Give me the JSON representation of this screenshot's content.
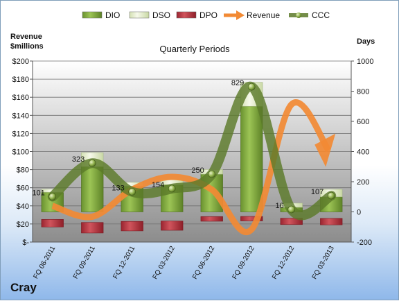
{
  "chart_data": {
    "type": "bar",
    "title": "Quarterly Periods",
    "company": "Cray",
    "left_axis": {
      "label_line1": "Revenue",
      "label_line2": "$millions",
      "ticks": [
        "$-",
        "$20",
        "$40",
        "$60",
        "$80",
        "$100",
        "$120",
        "$140",
        "$160",
        "$180",
        "$200"
      ],
      "ylim": [
        0,
        200
      ]
    },
    "right_axis": {
      "label": "Days",
      "ticks": [
        "-200",
        "0",
        "200",
        "400",
        "600",
        "800",
        "1000"
      ],
      "ylim": [
        -200,
        1000
      ]
    },
    "categories": [
      "FQ 06-2011",
      "FQ 09-2011",
      "FQ 12-2011",
      "FQ 03-2012",
      "FQ 06-2012",
      "FQ 09-2012",
      "FQ 12-2012",
      "FQ 03-2013"
    ],
    "legend": {
      "position": "top",
      "items": [
        {
          "name": "DIO",
          "type": "bar",
          "color": "#7ea83a"
        },
        {
          "name": "DSO",
          "type": "bar",
          "color": "#e6efcf"
        },
        {
          "name": "DPO",
          "type": "bar",
          "color": "#b8333d"
        },
        {
          "name": "Revenue",
          "type": "arrow",
          "color": "#f28a34"
        },
        {
          "name": "CCC",
          "type": "line",
          "color": "#5c7a2a"
        }
      ]
    },
    "series": [
      {
        "name": "DIO",
        "axis": "right",
        "values": [
          130,
          300,
          170,
          180,
          250,
          700,
          30,
          100
        ]
      },
      {
        "name": "DSO",
        "axis": "right",
        "values": [
          21,
          93,
          26,
          35,
          31,
          159,
          28,
          50
        ]
      },
      {
        "name": "DPO",
        "axis": "right",
        "values": [
          -50,
          -70,
          -63,
          -61,
          -31,
          -30,
          -42,
          -43
        ]
      },
      {
        "name": "Revenue",
        "axis": "left",
        "values": [
          40,
          28,
          58,
          72,
          58,
          14,
          152,
          80
        ]
      },
      {
        "name": "CCC",
        "axis": "right",
        "values": [
          101,
          323,
          133,
          154,
          250,
          829,
          16,
          107
        ]
      }
    ],
    "ccc_labels": [
      "101",
      "323",
      "133",
      "154",
      "250",
      "829",
      "16",
      "107"
    ],
    "grid": true,
    "colors": {
      "plot_top": "#ffffff",
      "plot_bottom": "#8c8c8c",
      "dio": "#7ea83a",
      "dso": "#e6efcf",
      "dpo": "#b8333d",
      "revenue": "#f28a34",
      "ccc": "#5c7a2a"
    }
  }
}
